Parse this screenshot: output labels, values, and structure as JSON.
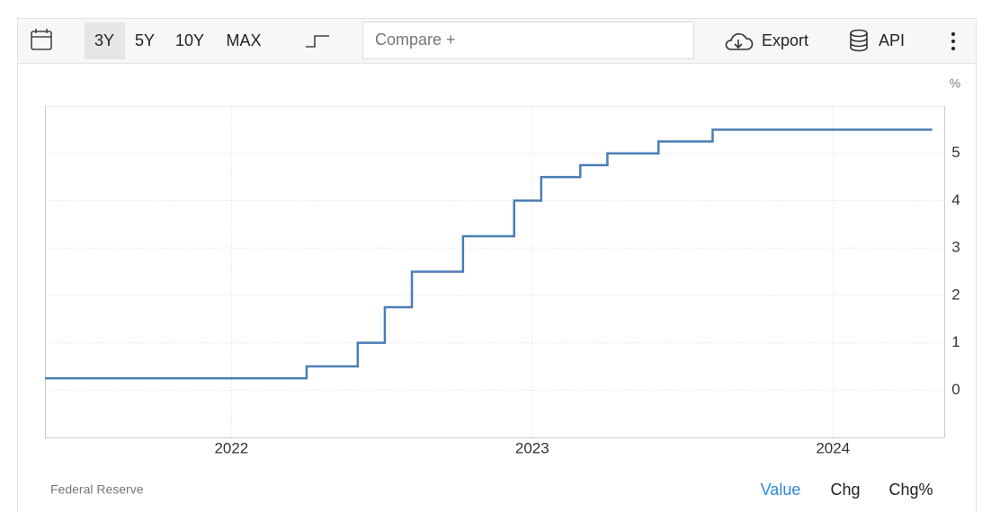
{
  "toolbar": {
    "ranges": [
      "3Y",
      "5Y",
      "10Y",
      "MAX"
    ],
    "compare": "Compare +",
    "export": "Export",
    "api": "API"
  },
  "chart_data": {
    "type": "step",
    "unit": "%",
    "color": "#4a7db4",
    "grid": true,
    "x": [
      2021.38,
      2022.25,
      2022.42,
      2022.51,
      2022.6,
      2022.77,
      2022.94,
      2023.03,
      2023.16,
      2023.25,
      2023.42,
      2023.6,
      2024.33
    ],
    "values": [
      0.25,
      0.5,
      1,
      1.75,
      2.5,
      3.25,
      4,
      4.5,
      4.75,
      5,
      5.25,
      5.5,
      5.5
    ],
    "xlim": [
      2021.38,
      2024.37
    ],
    "xticks": [
      2022,
      2023,
      2024
    ],
    "ylim": [
      -1,
      6
    ],
    "yticks": [
      0,
      1,
      2,
      3,
      4,
      5
    ]
  },
  "footer": {
    "source": "Federal Reserve",
    "tabs": [
      "Value",
      "Chg",
      "Chg%"
    ]
  }
}
